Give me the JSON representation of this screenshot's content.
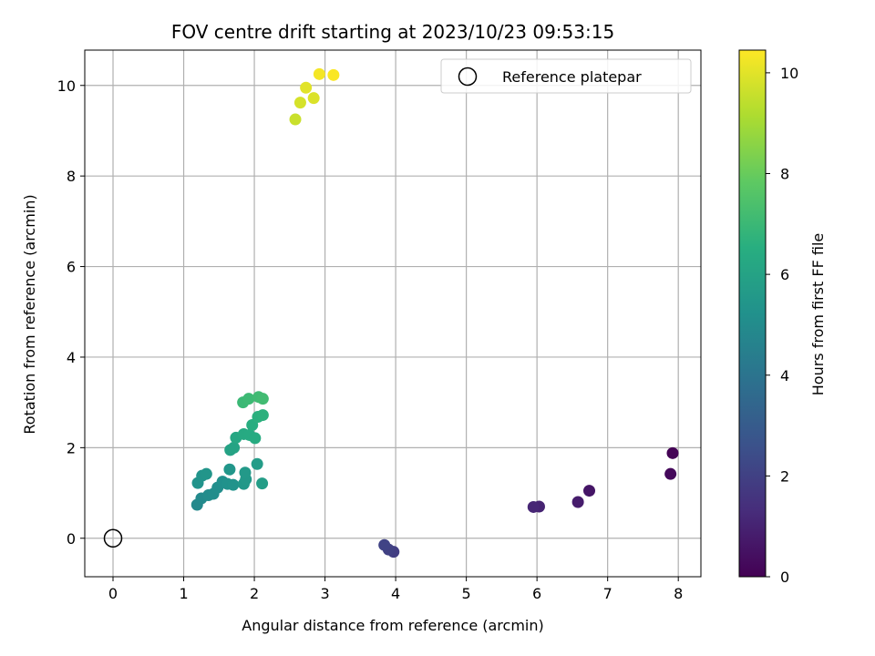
{
  "chart_data": {
    "type": "scatter",
    "title": "FOV centre drift starting at 2023/10/23 09:53:15",
    "xlabel": "Angular distance from reference (arcmin)",
    "ylabel": "Rotation from reference (arcmin)",
    "xlim": [
      -0.4,
      8.32
    ],
    "ylim": [
      -0.85,
      10.78
    ],
    "xticks": [
      "0",
      "1",
      "2",
      "3",
      "4",
      "5",
      "6",
      "7",
      "8"
    ],
    "yticks": [
      "0",
      "2",
      "4",
      "6",
      "8",
      "10"
    ],
    "grid": true,
    "legend": {
      "position": "top-right",
      "label": "Reference platepar"
    },
    "reference_point": {
      "x": 0,
      "y": 0
    },
    "colorbar": {
      "label": "Hours from first FF file",
      "range": [
        0,
        10.45
      ],
      "ticks": [
        "0",
        "2",
        "4",
        "6",
        "8",
        "10"
      ],
      "colormap": "viridis"
    },
    "series": [
      {
        "points": [
          {
            "x": 7.92,
            "y": 1.88,
            "c": 0.05
          },
          {
            "x": 7.89,
            "y": 1.42,
            "c": 0.2
          },
          {
            "x": 6.74,
            "y": 1.05,
            "c": 0.6
          },
          {
            "x": 6.58,
            "y": 0.8,
            "c": 0.8
          },
          {
            "x": 6.03,
            "y": 0.7,
            "c": 1.0
          },
          {
            "x": 5.95,
            "y": 0.69,
            "c": 1.1
          },
          {
            "x": 3.97,
            "y": -0.3,
            "c": 1.9
          },
          {
            "x": 3.9,
            "y": -0.25,
            "c": 2.0
          },
          {
            "x": 3.84,
            "y": -0.15,
            "c": 2.1
          },
          {
            "x": 1.19,
            "y": 0.74,
            "c": 4.9
          },
          {
            "x": 1.25,
            "y": 0.88,
            "c": 4.95
          },
          {
            "x": 1.35,
            "y": 0.95,
            "c": 5.0
          },
          {
            "x": 1.42,
            "y": 0.98,
            "c": 5.05
          },
          {
            "x": 1.48,
            "y": 1.12,
            "c": 5.1
          },
          {
            "x": 1.2,
            "y": 1.22,
            "c": 5.3
          },
          {
            "x": 1.26,
            "y": 1.38,
            "c": 5.35
          },
          {
            "x": 1.32,
            "y": 1.42,
            "c": 5.4
          },
          {
            "x": 1.55,
            "y": 1.25,
            "c": 5.2
          },
          {
            "x": 1.62,
            "y": 1.2,
            "c": 5.25
          },
          {
            "x": 1.7,
            "y": 1.18,
            "c": 5.3
          },
          {
            "x": 1.65,
            "y": 1.52,
            "c": 5.45
          },
          {
            "x": 1.85,
            "y": 1.2,
            "c": 5.5
          },
          {
            "x": 1.88,
            "y": 1.3,
            "c": 5.55
          },
          {
            "x": 1.87,
            "y": 1.45,
            "c": 5.6
          },
          {
            "x": 2.04,
            "y": 1.64,
            "c": 5.7
          },
          {
            "x": 2.11,
            "y": 1.21,
            "c": 5.75
          },
          {
            "x": 1.66,
            "y": 1.95,
            "c": 6.0
          },
          {
            "x": 1.71,
            "y": 2.0,
            "c": 6.05
          },
          {
            "x": 1.74,
            "y": 2.22,
            "c": 6.2
          },
          {
            "x": 1.85,
            "y": 2.3,
            "c": 6.3
          },
          {
            "x": 1.93,
            "y": 2.28,
            "c": 6.35
          },
          {
            "x": 2.01,
            "y": 2.21,
            "c": 6.4
          },
          {
            "x": 1.97,
            "y": 2.5,
            "c": 6.5
          },
          {
            "x": 2.05,
            "y": 2.68,
            "c": 6.6
          },
          {
            "x": 2.12,
            "y": 2.72,
            "c": 6.65
          },
          {
            "x": 1.84,
            "y": 3.0,
            "c": 7.0
          },
          {
            "x": 1.92,
            "y": 3.08,
            "c": 7.05
          },
          {
            "x": 2.06,
            "y": 3.12,
            "c": 7.1
          },
          {
            "x": 2.12,
            "y": 3.08,
            "c": 7.15
          },
          {
            "x": 2.58,
            "y": 9.25,
            "c": 9.6
          },
          {
            "x": 2.65,
            "y": 9.62,
            "c": 9.8
          },
          {
            "x": 2.73,
            "y": 9.95,
            "c": 10.0
          },
          {
            "x": 2.84,
            "y": 9.72,
            "c": 9.9
          },
          {
            "x": 2.92,
            "y": 10.25,
            "c": 10.3
          },
          {
            "x": 3.12,
            "y": 10.23,
            "c": 10.4
          }
        ]
      }
    ]
  }
}
